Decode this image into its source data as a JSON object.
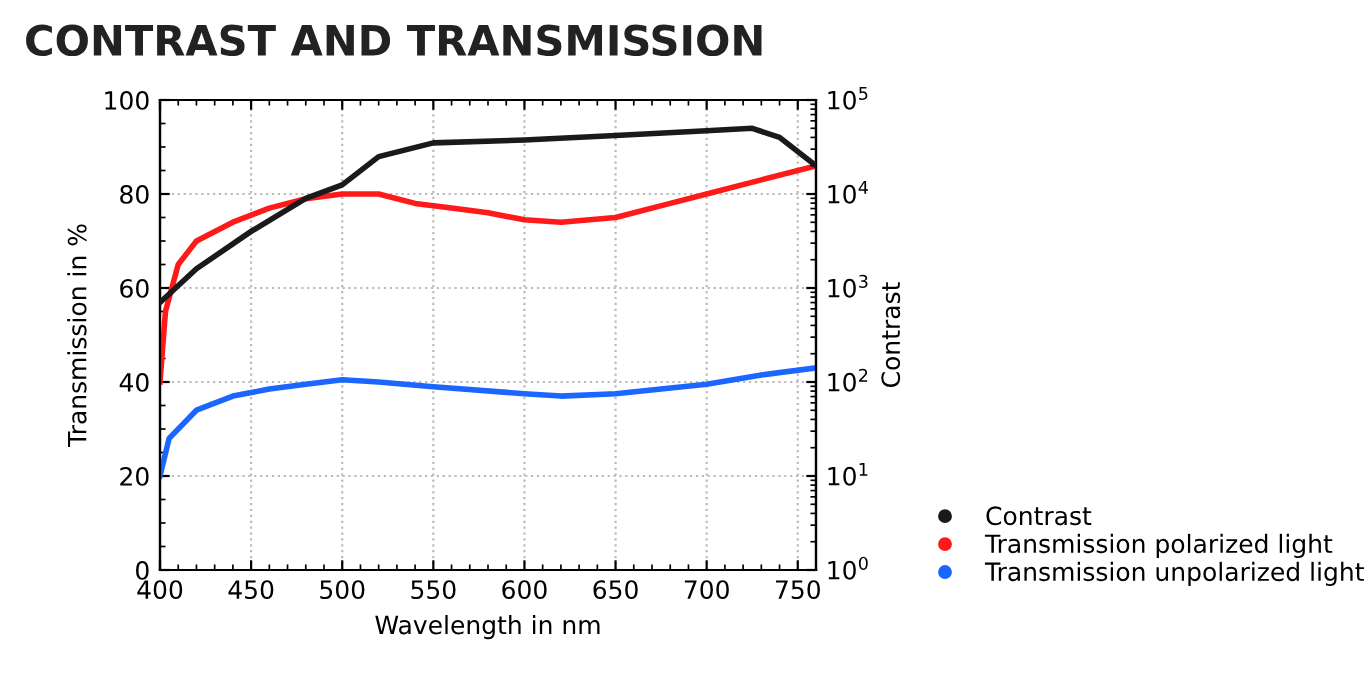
{
  "chart_data": {
    "type": "line",
    "title": "CONTRAST AND TRANSMISSION",
    "xlabel": "Wavelength in nm",
    "ylabel": "Transmission in %",
    "y2label": "Contrast",
    "xlim": [
      400,
      760
    ],
    "xticks": [
      400,
      450,
      500,
      550,
      600,
      650,
      700,
      750
    ],
    "ylim": [
      0,
      100
    ],
    "yticks": [
      0,
      20,
      40,
      60,
      80,
      100
    ],
    "y2lim": [
      1,
      100000
    ],
    "y2ticks": [
      {
        "value": 1,
        "label": "10$^{0}$"
      },
      {
        "value": 10,
        "label": "10$^{1}$"
      },
      {
        "value": 100,
        "label": "10$^{2}$"
      },
      {
        "value": 1000,
        "label": "10$^{3}$"
      },
      {
        "value": 10000,
        "label": "10$^{4}$"
      },
      {
        "value": 100000,
        "label": "10$^{5}$"
      }
    ],
    "log": "y2",
    "grid": true,
    "legend": "bottom right",
    "series": [
      {
        "name": "Contrast",
        "color": "#1a1a1a",
        "axis": "y2",
        "x": [
          400,
          420,
          450,
          480,
          500,
          520,
          550,
          600,
          650,
          700,
          725,
          740,
          760
        ],
        "values": [
          700,
          1600,
          4000,
          9000,
          12500,
          25000,
          35000,
          37500,
          42000,
          47000,
          50000,
          40000,
          20000
        ]
      },
      {
        "name": "Transmission polarized light",
        "color": "#ff1a1a",
        "x": [
          400,
          403,
          410,
          420,
          440,
          460,
          480,
          500,
          520,
          540,
          560,
          580,
          600,
          620,
          650,
          680,
          700,
          730,
          760
        ],
        "values": [
          40,
          55,
          65,
          70,
          74,
          77,
          79,
          80,
          80,
          78,
          77,
          76,
          74.5,
          74,
          75,
          78,
          80,
          83,
          86
        ]
      },
      {
        "name": "Transmission unpolarized light",
        "color": "#1a66ff",
        "x": [
          400,
          405,
          420,
          440,
          460,
          480,
          500,
          520,
          550,
          600,
          620,
          650,
          700,
          730,
          760
        ],
        "values": [
          20,
          28,
          34,
          37,
          38.5,
          39.5,
          40.5,
          40,
          39,
          37.5,
          37,
          37.5,
          39.5,
          41.5,
          43
        ]
      }
    ]
  }
}
